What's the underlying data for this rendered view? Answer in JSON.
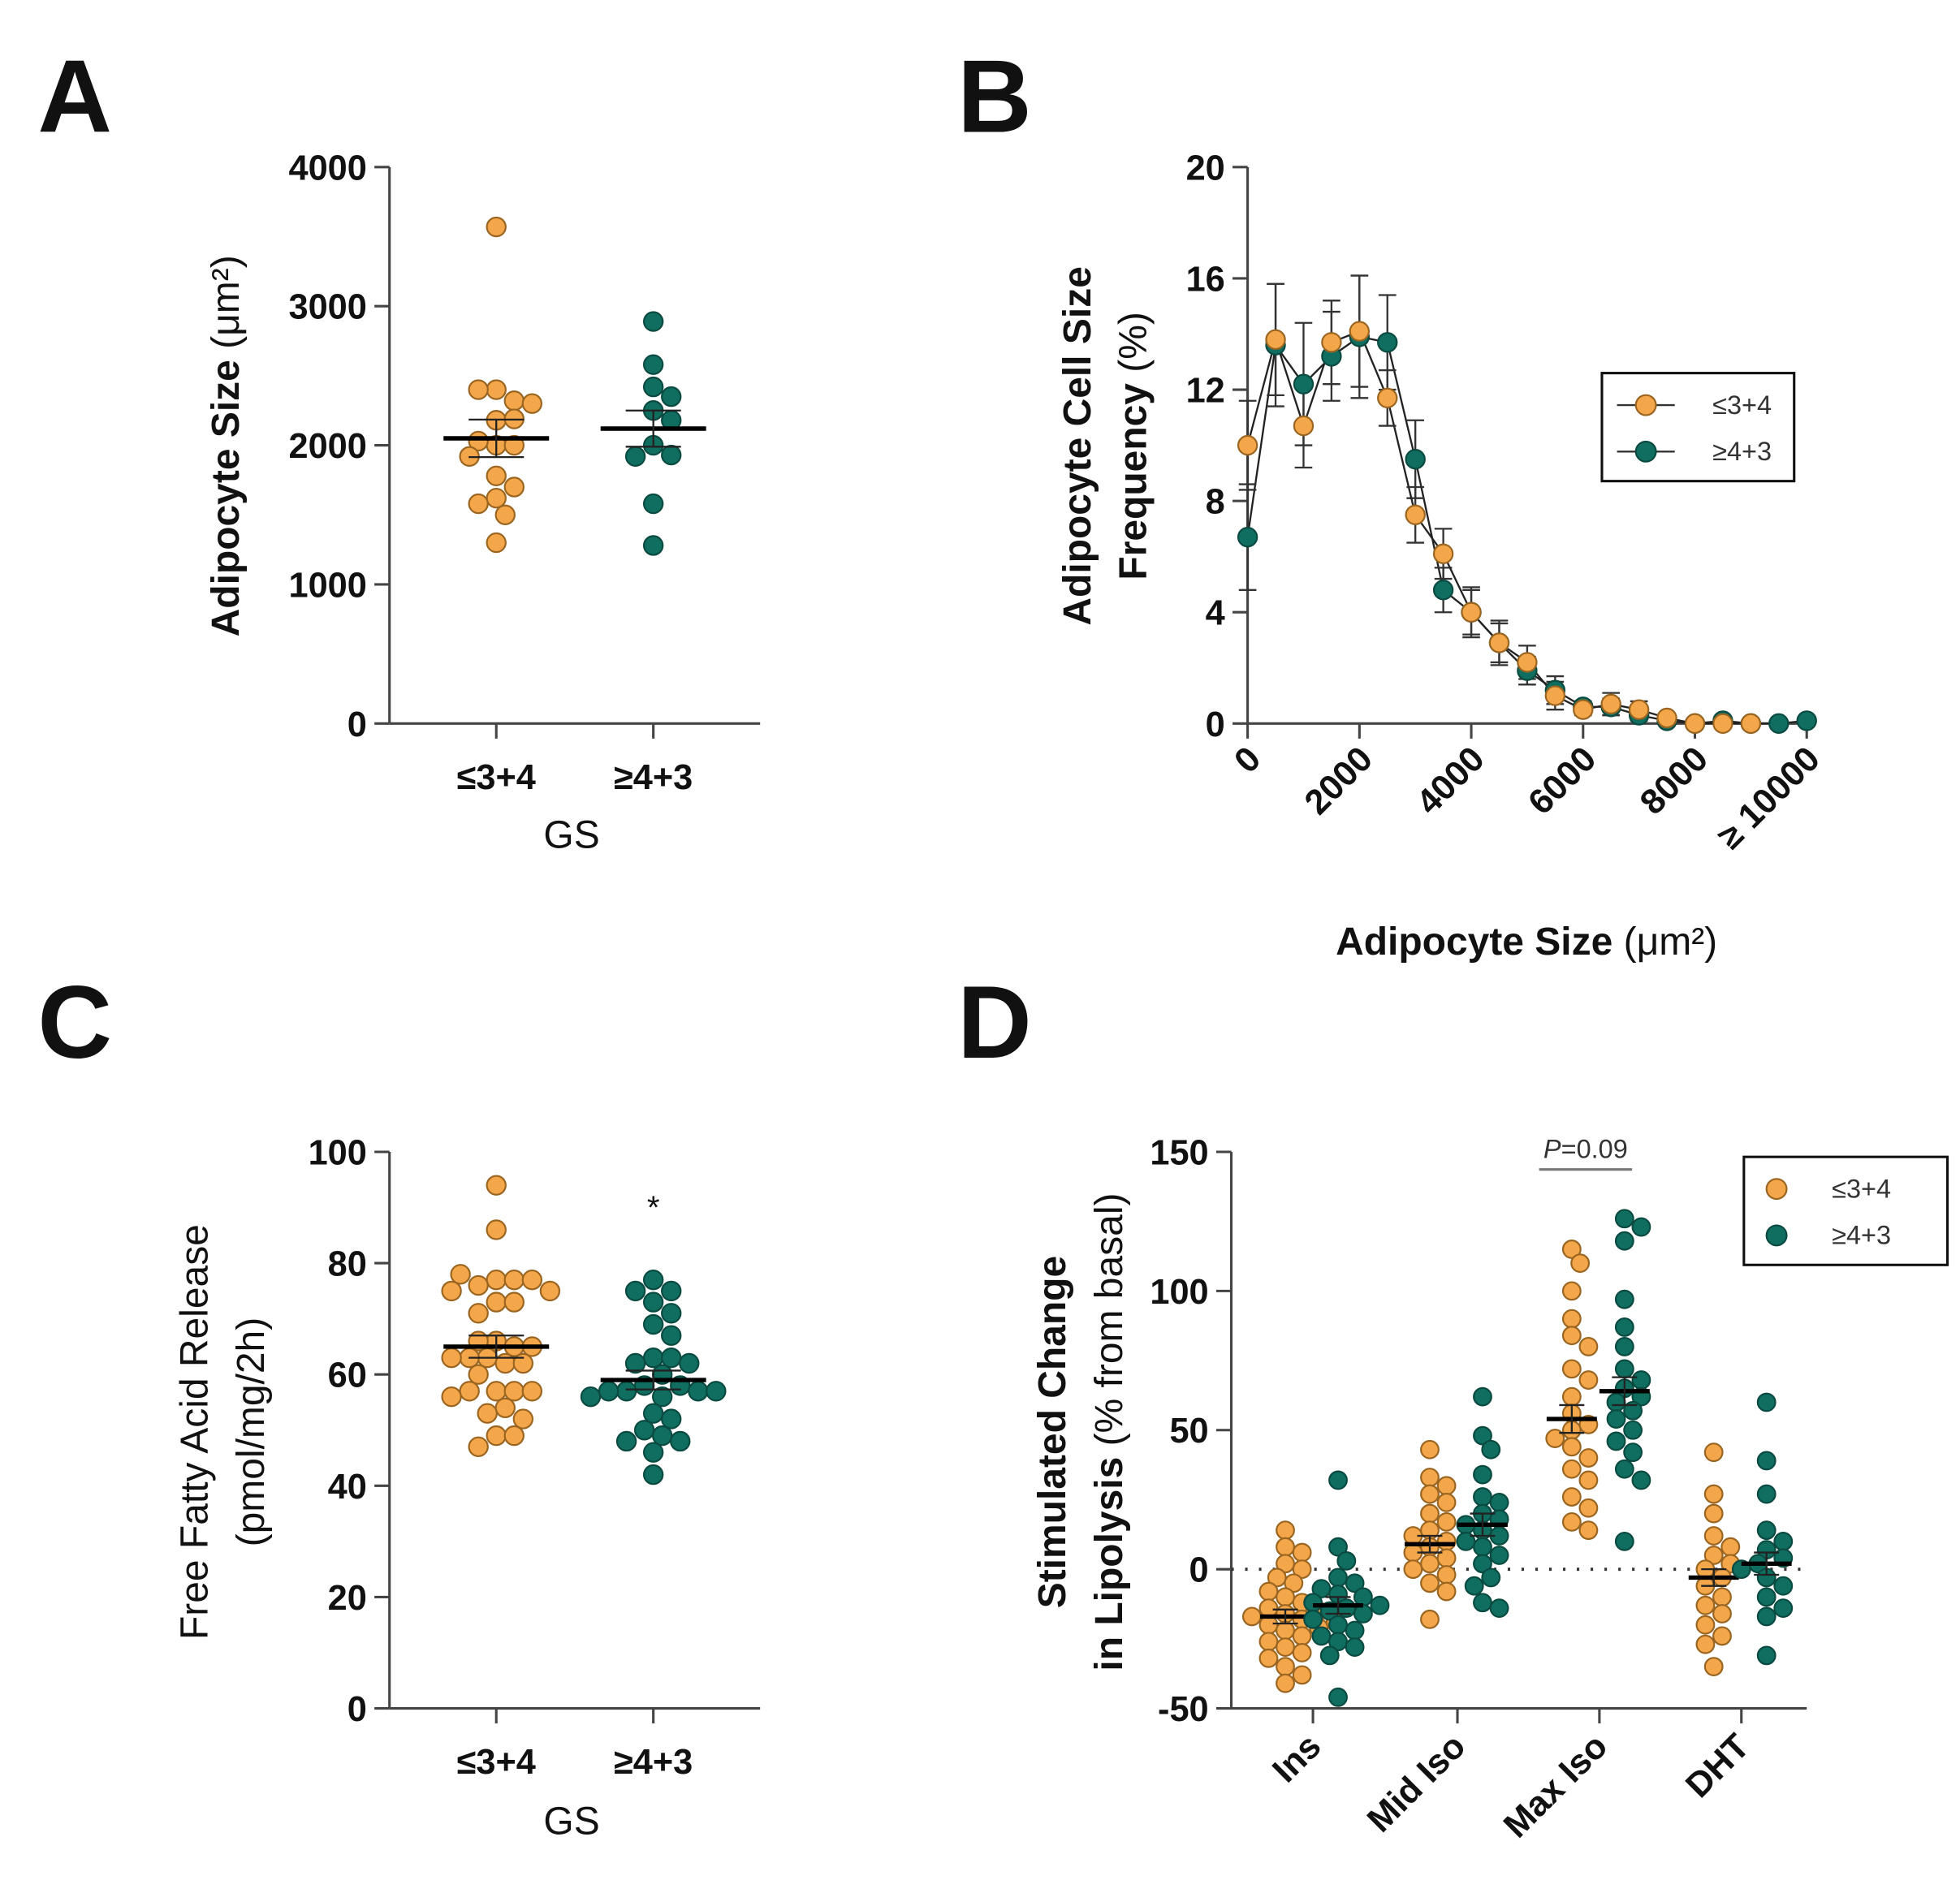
{
  "colors": {
    "low": "#F4A64A",
    "low_stroke": "#9A6520",
    "high": "#0F6E60",
    "high_stroke": "#0A4A40",
    "axis": "#444444"
  },
  "chart_data": [
    {
      "panel": "A",
      "type": "scatter",
      "ylabel": "Adipocyte Size",
      "ylabel_unit": " (μm²)",
      "xlabel": "GS",
      "categories": [
        "≤3+4",
        "≥4+3"
      ],
      "yticks": [
        "0",
        "1000",
        "2000",
        "3000",
        "4000"
      ],
      "ylim": [
        0,
        4000
      ],
      "series": [
        {
          "name": "≤3+4",
          "mean": 2050,
          "sem": 135,
          "values": [
            3570,
            2400,
            2320,
            2400,
            2300,
            2180,
            2190,
            2000,
            2000,
            2030,
            1920,
            1780,
            1700,
            1620,
            1580,
            1500,
            1300
          ]
        },
        {
          "name": "≥4+3",
          "mean": 2120,
          "sem": 130,
          "values": [
            2890,
            2580,
            2420,
            2350,
            2250,
            2180,
            2000,
            1930,
            1920,
            1580,
            1280
          ]
        }
      ]
    },
    {
      "panel": "B",
      "type": "line",
      "ylabel_line1": "Adipocyte Cell Size",
      "ylabel_line2": "Frequency",
      "ylabel_unit": " (%)",
      "xlabel": "Adipocyte Size",
      "xlabel_unit": " (μm²)",
      "x": [
        0,
        500,
        1000,
        1500,
        2000,
        2500,
        3000,
        3500,
        4000,
        4500,
        5000,
        5500,
        6000,
        6500,
        7000,
        7500,
        8000,
        8500,
        9000,
        9500,
        10000
      ],
      "xticks": [
        "0",
        "2000",
        "4000",
        "6000",
        "8000",
        "≥ 10000"
      ],
      "yticks": [
        "0",
        "4",
        "8",
        "12",
        "16",
        "20"
      ],
      "xlim": [
        0,
        10000
      ],
      "ylim": [
        0,
        20
      ],
      "legend": "right",
      "series": [
        {
          "name": "≤3+4",
          "values": [
            10.0,
            13.8,
            10.7,
            13.7,
            14.1,
            11.7,
            7.5,
            6.1,
            4.0,
            2.9,
            2.2,
            1.0,
            0.5,
            0.7,
            0.5,
            0.2,
            0.0,
            0.0,
            0.0,
            null,
            null
          ],
          "sem": [
            1.6,
            2.0,
            1.5,
            1.5,
            2.0,
            1.0,
            1.0,
            0.9,
            0.9,
            0.8,
            0.6,
            0.5,
            0.2,
            0.4,
            0.3,
            0.1,
            0.1,
            0.1,
            0.1,
            null,
            null
          ]
        },
        {
          "name": "≥4+3",
          "values": [
            6.7,
            13.6,
            12.2,
            13.2,
            13.9,
            13.7,
            9.5,
            4.8,
            4.0,
            2.9,
            1.9,
            1.2,
            0.6,
            0.6,
            0.3,
            0.1,
            0.0,
            0.1,
            0.0,
            0.0,
            0.1
          ],
          "sem": [
            1.9,
            2.2,
            2.2,
            1.6,
            2.2,
            1.7,
            1.4,
            0.8,
            0.8,
            0.7,
            0.5,
            0.5,
            0.2,
            0.3,
            0.2,
            0.1,
            0.1,
            0.1,
            0.1,
            0.1,
            0.1
          ]
        }
      ]
    },
    {
      "panel": "C",
      "type": "scatter",
      "ylabel_line1": "Free Fatty Acid Release",
      "ylabel_line2": "(pmol/mg/2h)",
      "xlabel": "GS",
      "categories": [
        "≤3+4",
        "≥4+3"
      ],
      "yticks": [
        "0",
        "20",
        "40",
        "60",
        "80",
        "100"
      ],
      "ylim": [
        0,
        100
      ],
      "annotation": "*",
      "series": [
        {
          "name": "≤3+4",
          "mean": 65,
          "sem": 2.0,
          "values": [
            94,
            86,
            77,
            77,
            76,
            77,
            78,
            75,
            75,
            73,
            73,
            71,
            66,
            65,
            66,
            65,
            63,
            63,
            62,
            62,
            63,
            60,
            57,
            57,
            57,
            57,
            56,
            54,
            53,
            52,
            49,
            49,
            47
          ]
        },
        {
          "name": "≥4+3",
          "mean": 59,
          "sem": 1.7,
          "values": [
            77,
            75,
            75,
            73,
            71,
            69,
            67,
            63,
            63,
            62,
            62,
            60,
            58,
            58,
            57,
            57,
            57,
            57,
            56,
            56,
            53,
            52,
            50,
            49,
            48,
            48,
            46,
            42
          ]
        }
      ]
    },
    {
      "panel": "D",
      "type": "scatter",
      "ylabel_line1": "Stimulated Change",
      "ylabel_line2": "in Lipolysis",
      "ylabel_unit": " (% from basal)",
      "categories": [
        "Ins",
        "Mid Iso",
        "Max Iso",
        "DHT"
      ],
      "yticks": [
        "-50",
        "0",
        "50",
        "100",
        "150"
      ],
      "ylim": [
        -50,
        150
      ],
      "reference_line": 0,
      "annotation": "P=0.09",
      "annotation_p": "P",
      "annotation_rest": "=0.09",
      "legend": "top-right",
      "series": [
        {
          "name": "≤3+4",
          "means": [
            -17,
            9,
            54,
            -3
          ],
          "sems": [
            2.5,
            3,
            5,
            3
          ],
          "values": [
            [
              14,
              8,
              6,
              2,
              0,
              -3,
              -5,
              -8,
              -10,
              -12,
              -14,
              -15,
              -16,
              -17,
              -18,
              -19,
              -20,
              -21,
              -22,
              -24,
              -26,
              -28,
              -30,
              -32,
              -35,
              -38,
              -41
            ],
            [
              43,
              33,
              30,
              27,
              24,
              20,
              17,
              14,
              12,
              10,
              8,
              6,
              4,
              2,
              0,
              -2,
              -5,
              -8,
              -18
            ],
            [
              115,
              110,
              100,
              90,
              84,
              80,
              72,
              68,
              62,
              56,
              52,
              50,
              47,
              44,
              40,
              36,
              32,
              26,
              22,
              17,
              14
            ],
            [
              42,
              27,
              20,
              12,
              8,
              5,
              2,
              0,
              -3,
              -6,
              -10,
              -13,
              -16,
              -20,
              -24,
              -27,
              -35
            ]
          ]
        },
        {
          "name": "≥4+3",
          "means": [
            -13,
            16,
            64,
            2
          ],
          "sems": [
            3,
            4,
            5,
            4
          ],
          "values": [
            [
              32,
              8,
              3,
              -3,
              -5,
              -7,
              -9,
              -10,
              -12,
              -13,
              -14,
              -15,
              -16,
              -18,
              -20,
              -22,
              -24,
              -26,
              -28,
              -31,
              -46
            ],
            [
              62,
              48,
              43,
              34,
              26,
              24,
              20,
              18,
              16,
              14,
              12,
              10,
              8,
              5,
              2,
              -3,
              -6,
              -12,
              -14
            ],
            [
              126,
              123,
              118,
              97,
              87,
              80,
              72,
              68,
              65,
              62,
              60,
              57,
              54,
              50,
              46,
              42,
              36,
              32,
              10
            ],
            [
              60,
              39,
              27,
              14,
              10,
              7,
              4,
              2,
              0,
              -3,
              -6,
              -10,
              -14,
              -17,
              -31
            ]
          ]
        }
      ]
    }
  ]
}
